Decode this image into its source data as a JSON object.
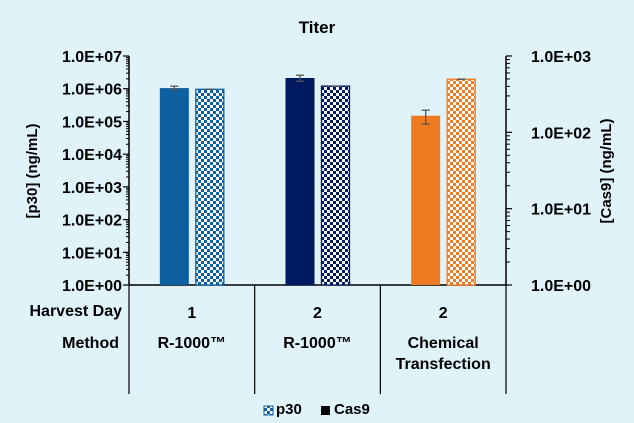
{
  "chart_data": {
    "type": "bar",
    "title": "Titer",
    "ylabel": "[p30] (ng/mL)",
    "y2label": "[Cas9] (ng/mL)",
    "yscale": "log",
    "ylim": [
      1,
      10000000
    ],
    "y2lim": [
      1,
      1000
    ],
    "yticks": [
      "1.0E+00",
      "1.0E+01",
      "1.0E+02",
      "1.0E+03",
      "1.0E+04",
      "1.0E+05",
      "1.0E+06",
      "1.0E+07"
    ],
    "y2ticks": [
      "1.0E+00",
      "1.0E+01",
      "1.0E+02",
      "1.0E+03"
    ],
    "row_labels": [
      "Harvest Day",
      "Method"
    ],
    "categories": [
      {
        "harvest_day": "1",
        "method": [
          "R-1000™"
        ],
        "color": "#0d5fa0"
      },
      {
        "harvest_day": "2",
        "method": [
          "R-1000™"
        ],
        "color": "#001a62"
      },
      {
        "harvest_day": "2",
        "method": [
          "Chemical",
          "Transfection"
        ],
        "color": "#ef7b22"
      }
    ],
    "series": [
      {
        "name": "Cas9",
        "axis": "right",
        "pattern": "solid",
        "values": [
          380,
          515,
          165
        ],
        "error_low": [
          363,
          468,
          128
        ],
        "error_high": [
          402,
          560,
          195
        ]
      },
      {
        "name": "p30",
        "axis": "left",
        "pattern": "checkered",
        "values": [
          960000,
          1200000,
          1950000
        ]
      }
    ],
    "legend": {
      "position": "bottom",
      "entries": [
        {
          "label": "p30",
          "pattern": "checkered"
        },
        {
          "label": "Cas9",
          "pattern": "solid"
        }
      ]
    },
    "grid": false
  }
}
